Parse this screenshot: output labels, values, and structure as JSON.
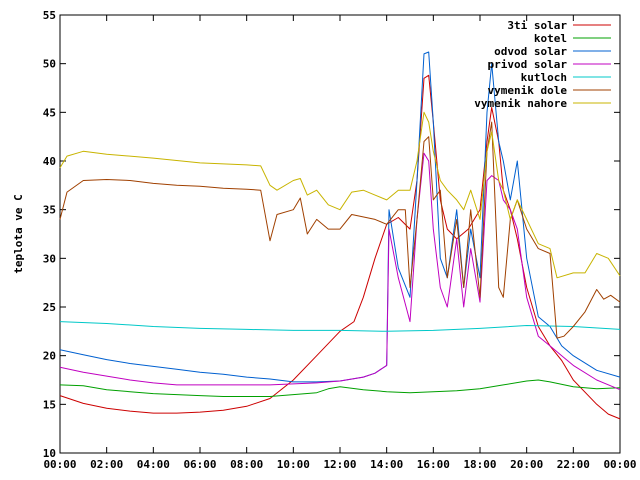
{
  "chart_data": {
    "type": "line",
    "title": "",
    "xlabel": "",
    "ylabel": "teplota ve C",
    "xlim": [
      0,
      24
    ],
    "ylim": [
      10,
      55
    ],
    "y_ticks": [
      10,
      15,
      20,
      25,
      30,
      35,
      40,
      45,
      50,
      55
    ],
    "x_ticks": [
      {
        "value": 0,
        "label": "00:00"
      },
      {
        "value": 2,
        "label": "02:00"
      },
      {
        "value": 4,
        "label": "04:00"
      },
      {
        "value": 6,
        "label": "06:00"
      },
      {
        "value": 8,
        "label": "08:00"
      },
      {
        "value": 10,
        "label": "10:00"
      },
      {
        "value": 12,
        "label": "12:00"
      },
      {
        "value": 14,
        "label": "14:00"
      },
      {
        "value": 16,
        "label": "16:00"
      },
      {
        "value": 18,
        "label": "18:00"
      },
      {
        "value": 20,
        "label": "20:00"
      },
      {
        "value": 22,
        "label": "22:00"
      },
      {
        "value": 24,
        "label": "00:00"
      }
    ],
    "grid": false,
    "legend": "top-right",
    "series": [
      {
        "name": "3ti solar",
        "color": "#cc0000",
        "points": [
          [
            0,
            15.9
          ],
          [
            1,
            15.1
          ],
          [
            2,
            14.6
          ],
          [
            3,
            14.3
          ],
          [
            4,
            14.1
          ],
          [
            5,
            14.1
          ],
          [
            6,
            14.2
          ],
          [
            7,
            14.4
          ],
          [
            8,
            14.8
          ],
          [
            9,
            15.6
          ],
          [
            10,
            17.5
          ],
          [
            11,
            20
          ],
          [
            12,
            22.5
          ],
          [
            12.6,
            23.5
          ],
          [
            13,
            26
          ],
          [
            13.5,
            30
          ],
          [
            14,
            33.5
          ],
          [
            14.5,
            34.2
          ],
          [
            15,
            33
          ],
          [
            15.3,
            38
          ],
          [
            15.6,
            48.5
          ],
          [
            15.8,
            48.8
          ],
          [
            16,
            44
          ],
          [
            16.3,
            36
          ],
          [
            16.6,
            33
          ],
          [
            17,
            32
          ],
          [
            17.5,
            33
          ],
          [
            18,
            35
          ],
          [
            18.3,
            42
          ],
          [
            18.5,
            45.5
          ],
          [
            18.8,
            42
          ],
          [
            19,
            37
          ],
          [
            19.3,
            35
          ],
          [
            19.6,
            32
          ],
          [
            20,
            27
          ],
          [
            20.5,
            23
          ],
          [
            21,
            21
          ],
          [
            21.5,
            19.5
          ],
          [
            22,
            17.5
          ],
          [
            23,
            15
          ],
          [
            23.5,
            14
          ],
          [
            24,
            13.5
          ]
        ]
      },
      {
        "name": "kotel",
        "color": "#00a000",
        "points": [
          [
            0,
            17
          ],
          [
            1,
            16.9
          ],
          [
            2,
            16.5
          ],
          [
            3,
            16.3
          ],
          [
            4,
            16.1
          ],
          [
            5,
            16
          ],
          [
            6,
            15.9
          ],
          [
            7,
            15.8
          ],
          [
            8,
            15.8
          ],
          [
            9,
            15.8
          ],
          [
            10,
            16
          ],
          [
            11,
            16.2
          ],
          [
            11.5,
            16.6
          ],
          [
            12,
            16.8
          ],
          [
            13,
            16.5
          ],
          [
            14,
            16.3
          ],
          [
            15,
            16.2
          ],
          [
            16,
            16.3
          ],
          [
            17,
            16.4
          ],
          [
            18,
            16.6
          ],
          [
            19,
            17
          ],
          [
            20,
            17.4
          ],
          [
            20.5,
            17.5
          ],
          [
            21,
            17.3
          ],
          [
            22,
            16.8
          ],
          [
            23,
            16.6
          ],
          [
            24,
            16.7
          ]
        ]
      },
      {
        "name": "odvod solar",
        "color": "#0060d0",
        "points": [
          [
            0,
            20.6
          ],
          [
            1,
            20.1
          ],
          [
            2,
            19.6
          ],
          [
            3,
            19.2
          ],
          [
            4,
            18.9
          ],
          [
            5,
            18.6
          ],
          [
            6,
            18.3
          ],
          [
            7,
            18.1
          ],
          [
            8,
            17.8
          ],
          [
            9,
            17.6
          ],
          [
            10,
            17.3
          ],
          [
            11,
            17.3
          ],
          [
            12,
            17.4
          ],
          [
            13,
            17.8
          ],
          [
            13.5,
            18.2
          ],
          [
            14,
            19
          ],
          [
            14.1,
            35
          ],
          [
            14.5,
            29
          ],
          [
            15,
            26
          ],
          [
            15.3,
            38
          ],
          [
            15.6,
            51
          ],
          [
            15.8,
            51.2
          ],
          [
            16,
            44
          ],
          [
            16.3,
            30
          ],
          [
            16.6,
            28
          ],
          [
            17,
            35
          ],
          [
            17.3,
            27
          ],
          [
            17.6,
            33
          ],
          [
            18,
            28
          ],
          [
            18.3,
            45
          ],
          [
            18.5,
            50
          ],
          [
            18.8,
            42
          ],
          [
            19,
            40
          ],
          [
            19.3,
            36
          ],
          [
            19.6,
            40
          ],
          [
            20,
            30
          ],
          [
            20.5,
            24
          ],
          [
            21,
            23
          ],
          [
            21.5,
            21
          ],
          [
            22,
            20
          ],
          [
            23,
            18.5
          ],
          [
            24,
            17.8
          ]
        ]
      },
      {
        "name": "privod solar",
        "color": "#c000c0",
        "points": [
          [
            0,
            18.8
          ],
          [
            1,
            18.3
          ],
          [
            2,
            17.9
          ],
          [
            3,
            17.5
          ],
          [
            4,
            17.2
          ],
          [
            5,
            17
          ],
          [
            6,
            17
          ],
          [
            7,
            17
          ],
          [
            8,
            17
          ],
          [
            9,
            17
          ],
          [
            10,
            17.1
          ],
          [
            11,
            17.2
          ],
          [
            12,
            17.4
          ],
          [
            13,
            17.8
          ],
          [
            13.5,
            18.2
          ],
          [
            14,
            19
          ],
          [
            14.1,
            33
          ],
          [
            14.5,
            28
          ],
          [
            15,
            23.5
          ],
          [
            15.3,
            34
          ],
          [
            15.6,
            40.8
          ],
          [
            15.8,
            40
          ],
          [
            16,
            33
          ],
          [
            16.3,
            27
          ],
          [
            16.6,
            25
          ],
          [
            17,
            32
          ],
          [
            17.3,
            25
          ],
          [
            17.6,
            31
          ],
          [
            18,
            25.5
          ],
          [
            18.3,
            38
          ],
          [
            18.5,
            38.5
          ],
          [
            18.8,
            38
          ],
          [
            19,
            36
          ],
          [
            19.3,
            35
          ],
          [
            19.6,
            33
          ],
          [
            20,
            26
          ],
          [
            20.5,
            22
          ],
          [
            21,
            21
          ],
          [
            21.5,
            20
          ],
          [
            22,
            19
          ],
          [
            23,
            17.5
          ],
          [
            24,
            16.5
          ]
        ]
      },
      {
        "name": "kutloch",
        "color": "#00c8c8",
        "points": [
          [
            0,
            23.5
          ],
          [
            2,
            23.3
          ],
          [
            4,
            23
          ],
          [
            6,
            22.8
          ],
          [
            8,
            22.7
          ],
          [
            10,
            22.6
          ],
          [
            12,
            22.6
          ],
          [
            14,
            22.5
          ],
          [
            16,
            22.6
          ],
          [
            18,
            22.8
          ],
          [
            20,
            23.1
          ],
          [
            22,
            23
          ],
          [
            24,
            22.7
          ]
        ]
      },
      {
        "name": "vymenik dole",
        "color": "#a04000",
        "points": [
          [
            0,
            34
          ],
          [
            0.3,
            36.8
          ],
          [
            1,
            38
          ],
          [
            2,
            38.1
          ],
          [
            3,
            38
          ],
          [
            4,
            37.7
          ],
          [
            5,
            37.5
          ],
          [
            6,
            37.4
          ],
          [
            7,
            37.2
          ],
          [
            8,
            37.1
          ],
          [
            8.6,
            37
          ],
          [
            9,
            31.8
          ],
          [
            9.3,
            34.5
          ],
          [
            10,
            35
          ],
          [
            10.3,
            36.2
          ],
          [
            10.6,
            32.5
          ],
          [
            11,
            34
          ],
          [
            11.5,
            33
          ],
          [
            12,
            33
          ],
          [
            12.5,
            34.5
          ],
          [
            13.5,
            34
          ],
          [
            14,
            33.5
          ],
          [
            14.5,
            35
          ],
          [
            14.8,
            35
          ],
          [
            15,
            27
          ],
          [
            15.3,
            34
          ],
          [
            15.6,
            42
          ],
          [
            15.8,
            42.5
          ],
          [
            16,
            36
          ],
          [
            16.3,
            37
          ],
          [
            16.6,
            28
          ],
          [
            17,
            34
          ],
          [
            17.3,
            27
          ],
          [
            17.6,
            35
          ],
          [
            18,
            26
          ],
          [
            18.3,
            41
          ],
          [
            18.5,
            44
          ],
          [
            18.8,
            27
          ],
          [
            19,
            26
          ],
          [
            19.3,
            34
          ],
          [
            19.6,
            36
          ],
          [
            20,
            33
          ],
          [
            20.5,
            31
          ],
          [
            21,
            30.5
          ],
          [
            21.3,
            21.8
          ],
          [
            21.6,
            22
          ],
          [
            22,
            23
          ],
          [
            22.5,
            24.5
          ],
          [
            23,
            26.8
          ],
          [
            23.3,
            25.8
          ],
          [
            23.6,
            26.2
          ],
          [
            24,
            25.5
          ]
        ]
      },
      {
        "name": "vymenik nahore",
        "color": "#c8b400",
        "points": [
          [
            0,
            39.3
          ],
          [
            0.3,
            40.5
          ],
          [
            1,
            41
          ],
          [
            2,
            40.7
          ],
          [
            4,
            40.3
          ],
          [
            6,
            39.8
          ],
          [
            8,
            39.6
          ],
          [
            8.6,
            39.5
          ],
          [
            9,
            37.5
          ],
          [
            9.3,
            37
          ],
          [
            10,
            38
          ],
          [
            10.3,
            38.2
          ],
          [
            10.6,
            36.5
          ],
          [
            11,
            37
          ],
          [
            11.5,
            35.5
          ],
          [
            12,
            35
          ],
          [
            12.5,
            36.8
          ],
          [
            13,
            37
          ],
          [
            13.5,
            36.5
          ],
          [
            14,
            36
          ],
          [
            14.5,
            37
          ],
          [
            15,
            37
          ],
          [
            15.3,
            40
          ],
          [
            15.6,
            45
          ],
          [
            15.8,
            44
          ],
          [
            16,
            41
          ],
          [
            16.3,
            38
          ],
          [
            16.6,
            37
          ],
          [
            17,
            36
          ],
          [
            17.3,
            35
          ],
          [
            17.6,
            37
          ],
          [
            18,
            34
          ],
          [
            18.3,
            41
          ],
          [
            18.5,
            43
          ],
          [
            18.8,
            38
          ],
          [
            19,
            37
          ],
          [
            19.3,
            34
          ],
          [
            19.6,
            36
          ],
          [
            20,
            34
          ],
          [
            20.5,
            31.5
          ],
          [
            21,
            31
          ],
          [
            21.3,
            28
          ],
          [
            22,
            28.5
          ],
          [
            22.5,
            28.5
          ],
          [
            23,
            30.5
          ],
          [
            23.5,
            30
          ],
          [
            24,
            28.2
          ]
        ]
      }
    ]
  }
}
